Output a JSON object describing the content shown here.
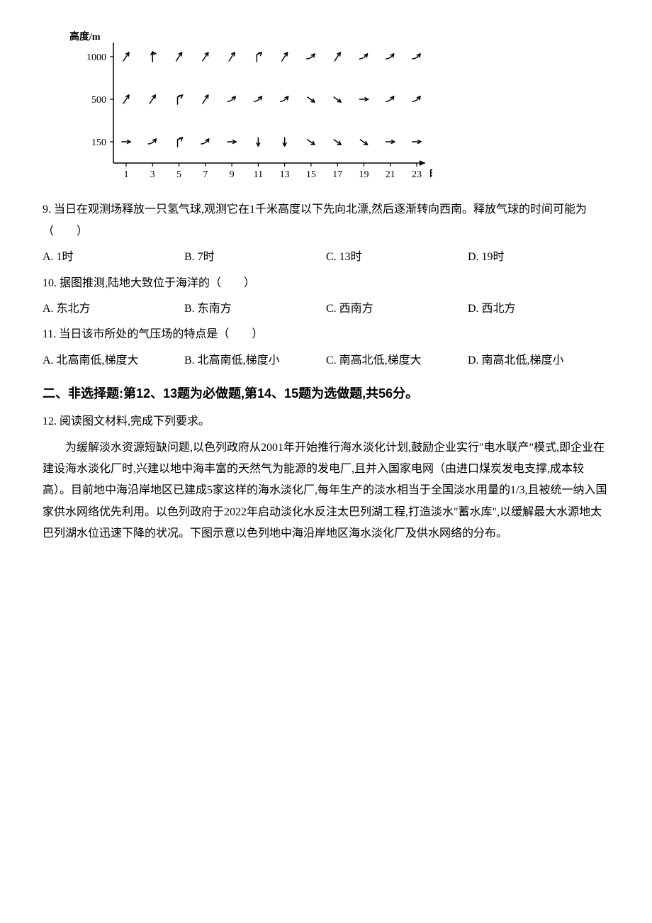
{
  "chart": {
    "y_axis_title": "高度/m",
    "x_axis_title": "时",
    "y_ticks": [
      150,
      500,
      1000
    ],
    "x_ticks": [
      1,
      3,
      5,
      7,
      9,
      11,
      13,
      15,
      17,
      19,
      21,
      23
    ],
    "row_glyphs": {
      "1000": [
        "↗",
        "↾",
        "↗",
        "↗",
        "↗",
        "↱",
        "↗",
        "⤴",
        "↗",
        "⤴",
        "⤴",
        "⤴"
      ],
      "500": [
        "↗",
        "↗",
        "↱",
        "↗",
        "⤴",
        "⤴",
        "⤴",
        "↘",
        "↘",
        "⟶",
        "⤴",
        "⤴"
      ],
      "150": [
        "⟶",
        "⤴",
        "↱",
        "⤴",
        "⟶",
        "↓",
        "↓",
        "↘",
        "↘",
        "↘",
        "⟶",
        "⟶"
      ]
    },
    "axis_color": "#000000",
    "tick_fontsize": 14,
    "title_fontsize": 14,
    "background": "#ffffff"
  },
  "q9": {
    "stem": "9. 当日在观测场释放一只氢气球,观测它在1千米高度以下先向北漂,然后逐渐转向西南。释放气球的时间可能为（　　）",
    "A": "A. 1时",
    "B": "B. 7时",
    "C": "C. 13时",
    "D": "D. 19时"
  },
  "q10": {
    "stem": "10. 据图推测,陆地大致位于海洋的（　　）",
    "A": "A. 东北方",
    "B": "B. 东南方",
    "C": "C. 西南方",
    "D": "D. 西北方"
  },
  "q11": {
    "stem": "11. 当日该市所处的气压场的特点是（　　）",
    "A": "A. 北高南低,梯度大",
    "B": "B. 北高南低,梯度小",
    "C": "C. 南高北低,梯度大",
    "D": "D. 南高北低,梯度小"
  },
  "section2": {
    "header": "二、非选择题:第12、13题为必做题,第14、15题为选做题,共56分。"
  },
  "q12": {
    "stem": "12. 阅读图文材料,完成下列要求。",
    "para": "为缓解淡水资源短缺问题,以色列政府从2001年开始推行海水淡化计划,鼓励企业实行\"电水联产\"模式,即企业在建设海水淡化厂时,兴建以地中海丰富的天然气为能源的发电厂,且并入国家电网（由进口煤炭发电支撑,成本较高）。目前地中海沿岸地区已建成5家这样的海水淡化厂,每年生产的淡水相当于全国淡水用量的1/3,且被统一纳入国家供水网络优先利用。以色列政府于2022年启动淡化水反注太巴列湖工程,打造淡水\"蓄水库\",以缓解最大水源地太巴列湖水位迅速下降的状况。下图示意以色列地中海沿岸地区海水淡化厂及供水网络的分布。"
  }
}
